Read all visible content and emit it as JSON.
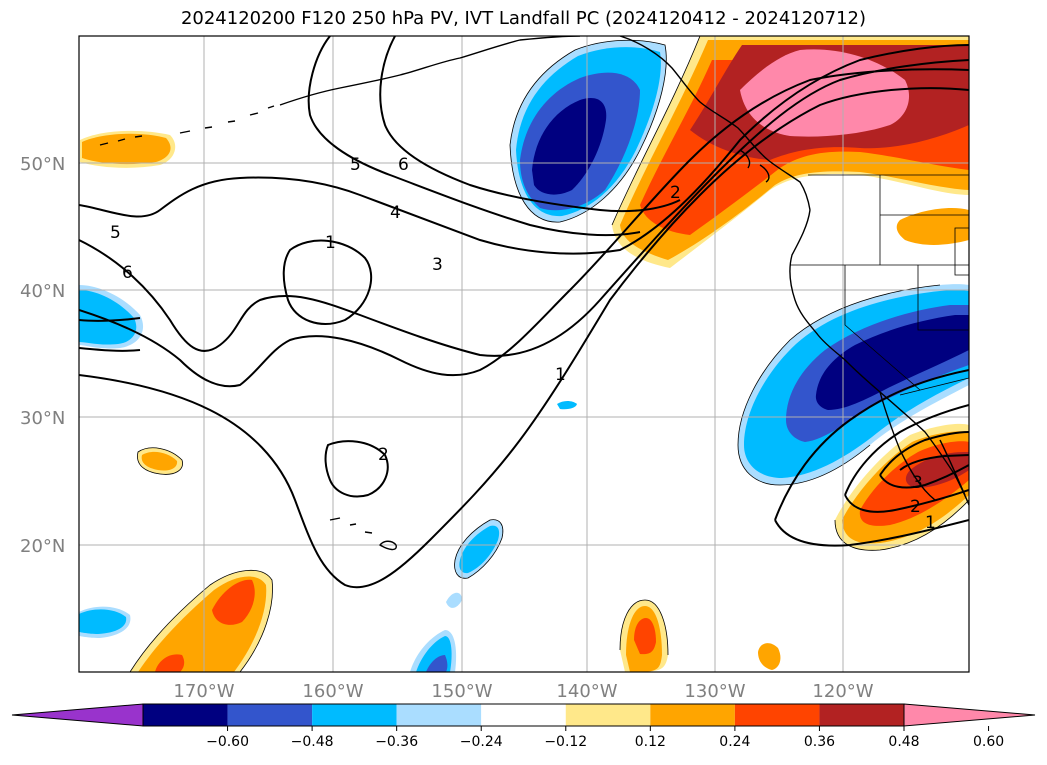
{
  "title": "2024120200 F120 250 hPa PV, IVT Landfall PC (2024120412 - 2024120712)",
  "lat_ticks": [
    "50°N",
    "40°N",
    "30°N",
    "20°N"
  ],
  "lon_ticks": [
    "170°W",
    "160°W",
    "150°W",
    "140°W",
    "130°W",
    "120°W"
  ],
  "colorbar": {
    "ticks": [
      "-0.60",
      "-0.48",
      "-0.36",
      "-0.24",
      "-0.12",
      "0.12",
      "0.24",
      "0.36",
      "0.48",
      "0.60"
    ],
    "colors": [
      "#9933cc",
      "#000080",
      "#3355cc",
      "#00bbff",
      "#aaddff",
      "#ffffff",
      "#ffe88a",
      "#ffa500",
      "#ff4400",
      "#b22222",
      "#ff88aa"
    ]
  },
  "pv_contour_labels": [
    "5",
    "6",
    "5",
    "6",
    "4",
    "3",
    "1",
    "1",
    "2",
    "2",
    "3",
    "2",
    "1"
  ]
}
